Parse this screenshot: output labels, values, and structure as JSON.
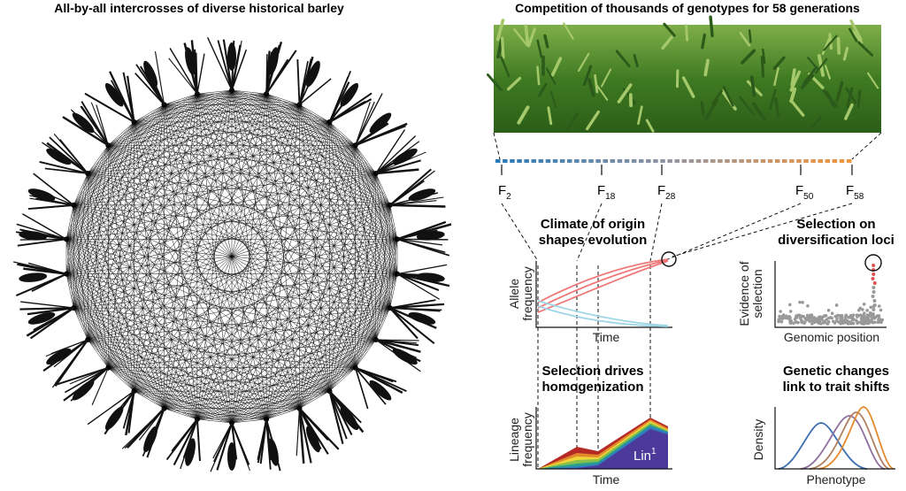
{
  "left": {
    "title": "All-by-all intercrosses of diverse historical barley"
  },
  "right": {
    "title": "Competition of thousands of genotypes for 58 generations",
    "generations": [
      {
        "letter": "F",
        "sub": "2"
      },
      {
        "letter": "F",
        "sub": "18"
      },
      {
        "letter": "F",
        "sub": "28"
      },
      {
        "letter": "F",
        "sub": "50"
      },
      {
        "letter": "F",
        "sub": "58"
      }
    ]
  },
  "panels": [
    {
      "title": [
        "Climate of origin",
        "shapes evolution"
      ],
      "y_label": [
        "Allele",
        "frequency"
      ],
      "x_label": "Time"
    },
    {
      "title": [
        "Selection on",
        "diversification loci"
      ],
      "y_label": [
        "Evidence of",
        "selection"
      ],
      "x_label": "Genomic position"
    },
    {
      "title": [
        "Selection drives",
        "homogenization"
      ],
      "y_label": [
        "Lineage",
        "frequency"
      ],
      "x_label": "Time",
      "series_label": {
        "text": "Lin",
        "sup": "1"
      }
    },
    {
      "title": [
        "Genetic changes",
        "link to trait shifts"
      ],
      "y_label": [
        "Density"
      ],
      "x_label": "Phenotype"
    }
  ]
}
